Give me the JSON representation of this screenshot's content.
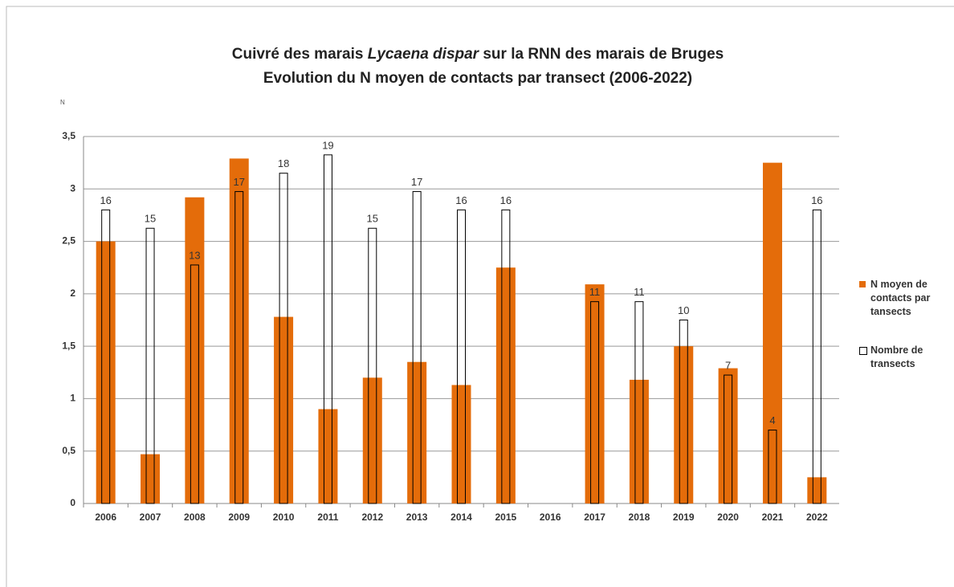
{
  "chart_data": {
    "type": "bar",
    "title_parts": [
      "Cuivré des marais ",
      "Lycaena dispar",
      " sur la RNN des marais de Bruges"
    ],
    "subtitle": "Evolution du N moyen de contacts par transect (2006-2022)",
    "ylabel": "N",
    "categories": [
      "2006",
      "2007",
      "2008",
      "2009",
      "2010",
      "2011",
      "2012",
      "2013",
      "2014",
      "2015",
      "2016",
      "2017",
      "2018",
      "2019",
      "2020",
      "2021",
      "2022"
    ],
    "series": [
      {
        "name": "N moyen de contacts par tansects",
        "color": "#e46c0a",
        "values": [
          2.5,
          0.47,
          2.92,
          3.29,
          1.78,
          0.9,
          1.2,
          1.35,
          1.13,
          2.25,
          null,
          2.09,
          1.18,
          1.5,
          1.29,
          3.25,
          0.25
        ]
      },
      {
        "name": "Nombre de transects",
        "color": "#000000",
        "axis": "y2",
        "values": [
          16,
          15,
          13,
          17,
          18,
          19,
          15,
          17,
          16,
          16,
          null,
          11,
          11,
          10,
          7,
          4,
          16
        ]
      }
    ],
    "ylim": [
      0,
      3.5
    ],
    "yticks": [
      0,
      {
        "value": 0.5,
        "label": "0,5"
      },
      1,
      {
        "value": 1.5,
        "label": "1,5"
      },
      2,
      {
        "value": 2.5,
        "label": "2,5"
      },
      3,
      {
        "value": 3.5,
        "label": "3,5"
      }
    ],
    "y2lim": [
      0,
      20
    ],
    "grid": true,
    "legend": "right"
  }
}
